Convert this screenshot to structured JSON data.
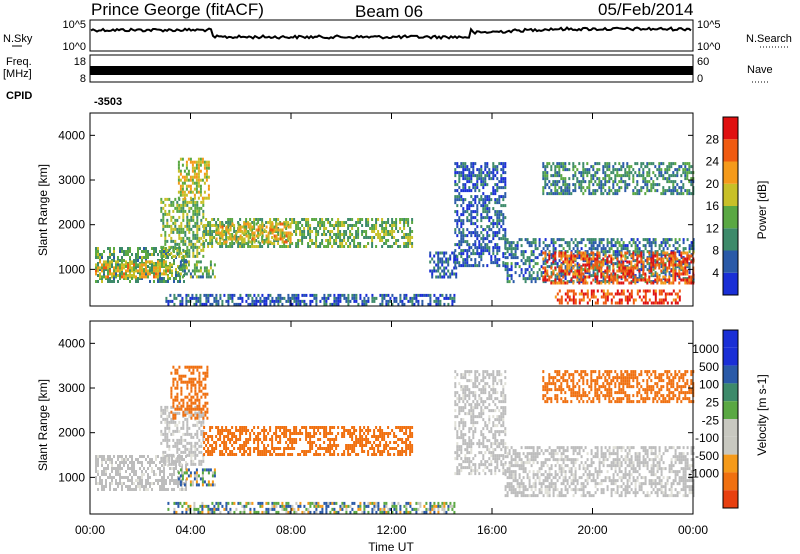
{
  "header": {
    "station": "Prince George (fitACF)",
    "beam": "Beam 06",
    "date": "05/Feb/2014"
  },
  "strip_labels": {
    "nsky": "N.Sky",
    "nsearch": "N.Search",
    "freq_line1": "Freq.",
    "freq_line2": "[MHz]",
    "nave": "Nave",
    "cpid": "CPID",
    "cpid_value": "-3503",
    "nsky_tick_top": "10^5",
    "nsky_tick_bottom": "10^0",
    "nsearch_tick_top": "10^5",
    "nsearch_tick_bottom": "10^0",
    "freq_tick_top": "18",
    "freq_tick_bottom": "8",
    "nave_tick_top": "60",
    "nave_tick_bottom": "0"
  },
  "colors": {
    "power_scale": [
      "#1a2fd6",
      "#2a5aa8",
      "#3d8a6a",
      "#5aa843",
      "#c8c028",
      "#f59a1a",
      "#f05a10",
      "#e01010"
    ],
    "velocity_scale": [
      "#1a2fd6",
      "#2a5aa8",
      "#3d8a6a",
      "#5aa843",
      "#c8c8c0",
      "#c8c8c0",
      "#f59a1a",
      "#f07010",
      "#e84010",
      "#e01010"
    ],
    "ground_scatter": "#bdbdbd"
  },
  "chart_data": [
    {
      "type": "heatmap",
      "name": "power",
      "ylabel": "Slant Range [km]",
      "xlabel": "Time UT",
      "x_ticks": [
        "00:00",
        "04:00",
        "08:00",
        "12:00",
        "16:00",
        "20:00",
        "00:00"
      ],
      "y_ticks": [
        "1000",
        "2000",
        "3000",
        "4000"
      ],
      "xlim": [
        0,
        24
      ],
      "ylim": [
        180,
        4500
      ],
      "colorbar": {
        "label": "Power [dB]",
        "ticks": [
          "4",
          "8",
          "12",
          "16",
          "20",
          "24",
          "28"
        ],
        "range": [
          0,
          30
        ]
      },
      "regions": [
        {
          "t0": 0.2,
          "t1": 3.8,
          "r0": 700,
          "r1": 1500,
          "val": 12
        },
        {
          "t0": 0.2,
          "t1": 3.3,
          "r0": 850,
          "r1": 1200,
          "val": 20
        },
        {
          "t0": 2.8,
          "t1": 4.5,
          "r0": 1300,
          "r1": 2600,
          "val": 14
        },
        {
          "t0": 3.5,
          "t1": 4.7,
          "r0": 2600,
          "r1": 3500,
          "val": 18
        },
        {
          "t0": 4.5,
          "t1": 12.8,
          "r0": 1500,
          "r1": 2150,
          "val": 14
        },
        {
          "t0": 5.0,
          "t1": 8.0,
          "r0": 1600,
          "r1": 2050,
          "val": 20
        },
        {
          "t0": 3.5,
          "t1": 5.0,
          "r0": 800,
          "r1": 1200,
          "val": 12
        },
        {
          "t0": 13.5,
          "t1": 14.6,
          "r0": 850,
          "r1": 1400,
          "val": 6
        },
        {
          "t0": 14.5,
          "t1": 16.5,
          "r0": 1100,
          "r1": 3400,
          "val": 6
        },
        {
          "t0": 16.5,
          "t1": 24.0,
          "r0": 700,
          "r1": 1700,
          "val": 8
        },
        {
          "t0": 18.0,
          "t1": 24.0,
          "r0": 700,
          "r1": 1400,
          "val": 26
        },
        {
          "t0": 18.5,
          "t1": 23.5,
          "r0": 250,
          "r1": 550,
          "val": 28
        },
        {
          "t0": 18.0,
          "t1": 24.0,
          "r0": 2700,
          "r1": 3400,
          "val": 10
        },
        {
          "t0": 3.0,
          "t1": 14.5,
          "r0": 200,
          "r1": 450,
          "val": 6
        }
      ]
    },
    {
      "type": "heatmap",
      "name": "velocity",
      "ylabel": "Slant Range [km]",
      "xlabel": "Time UT",
      "x_ticks": [
        "00:00",
        "04:00",
        "08:00",
        "12:00",
        "16:00",
        "20:00",
        "00:00"
      ],
      "y_ticks": [
        "1000",
        "2000",
        "3000",
        "4000"
      ],
      "xlim": [
        0,
        24
      ],
      "ylim": [
        180,
        4500
      ],
      "colorbar": {
        "label": "Velocity [m s-1]",
        "ticks": [
          "1000",
          "500",
          "100",
          "25",
          "-25",
          "-100",
          "-500",
          "-1000"
        ]
      },
      "regions": [
        {
          "t0": 0.2,
          "t1": 3.8,
          "r0": 700,
          "r1": 1500,
          "val": "ground"
        },
        {
          "t0": 2.8,
          "t1": 4.5,
          "r0": 1300,
          "r1": 2600,
          "val": "ground"
        },
        {
          "t0": 3.2,
          "t1": 4.7,
          "r0": 2300,
          "r1": 3500,
          "val": -300
        },
        {
          "t0": 4.5,
          "t1": 12.8,
          "r0": 1500,
          "r1": 2150,
          "val": -300
        },
        {
          "t0": 3.5,
          "t1": 5.0,
          "r0": 800,
          "r1": 1200,
          "val": 60
        },
        {
          "t0": 14.5,
          "t1": 16.5,
          "r0": 1100,
          "r1": 3400,
          "val": "ground"
        },
        {
          "t0": 16.5,
          "t1": 24.0,
          "r0": 600,
          "r1": 1700,
          "val": "ground"
        },
        {
          "t0": 18.0,
          "t1": 24.0,
          "r0": 2700,
          "r1": 3400,
          "val": -300
        },
        {
          "t0": 3.0,
          "t1": 14.5,
          "r0": 200,
          "r1": 450,
          "val": 60
        }
      ]
    }
  ]
}
